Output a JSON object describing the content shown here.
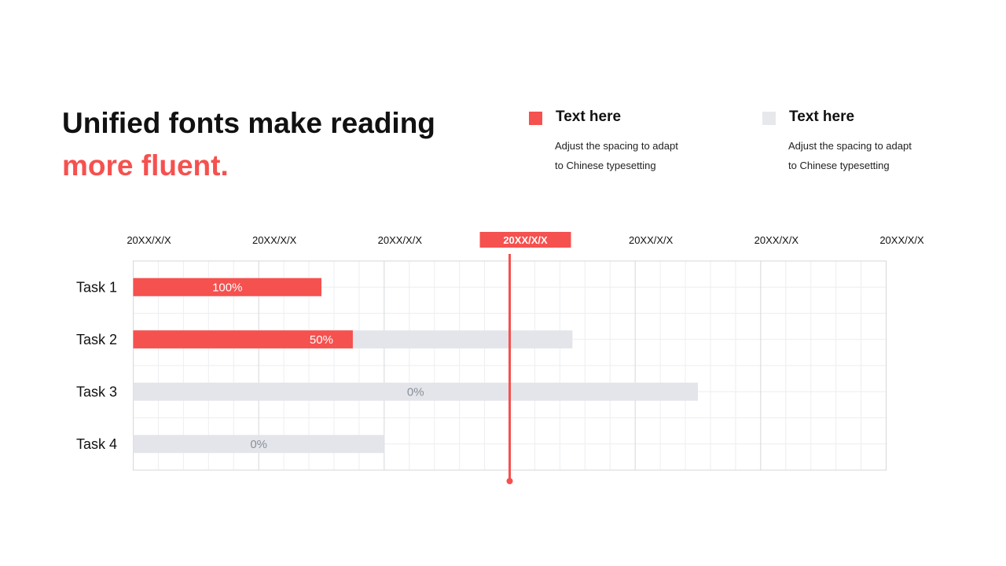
{
  "heading": {
    "line1": "Unified fonts make reading",
    "line2": "more fluent."
  },
  "legend": [
    {
      "title": "Text here",
      "desc_line1": "Adjust the spacing to adapt",
      "desc_line2": "to Chinese typesetting",
      "color": "#f5514f"
    },
    {
      "title": "Text here",
      "desc_line1": "Adjust the spacing to adapt",
      "desc_line2": "to Chinese typesetting",
      "color": "#e6e8ec"
    }
  ],
  "colors": {
    "accent": "#f5514f",
    "track": "#e3e5ea",
    "grid": "#eceef1",
    "grid_major": "#d5d7da",
    "text": "#111111",
    "muted": "#8a8f98"
  },
  "chart_data": {
    "type": "gantt",
    "x_periods": [
      "20XX/X/X",
      "20XX/X/X",
      "20XX/X/X",
      "20XX/X/X",
      "20XX/X/X",
      "20XX/X/X",
      "20XX/X/X"
    ],
    "highlight_period_index": 3,
    "current_marker_period": 3.0,
    "x_range": [
      0,
      6
    ],
    "tasks": [
      {
        "label": "Task 1",
        "start": 0,
        "end": 1.5,
        "progress": 1.0,
        "progress_label": "100%"
      },
      {
        "label": "Task 2",
        "start": 0,
        "end": 3.5,
        "progress": 0.5,
        "progress_label": "50%"
      },
      {
        "label": "Task 3",
        "start": 0,
        "end": 4.5,
        "progress": 0.0,
        "progress_label": "0%"
      },
      {
        "label": "Task 4",
        "start": 0,
        "end": 2.0,
        "progress": 0.0,
        "progress_label": "0%"
      }
    ]
  }
}
